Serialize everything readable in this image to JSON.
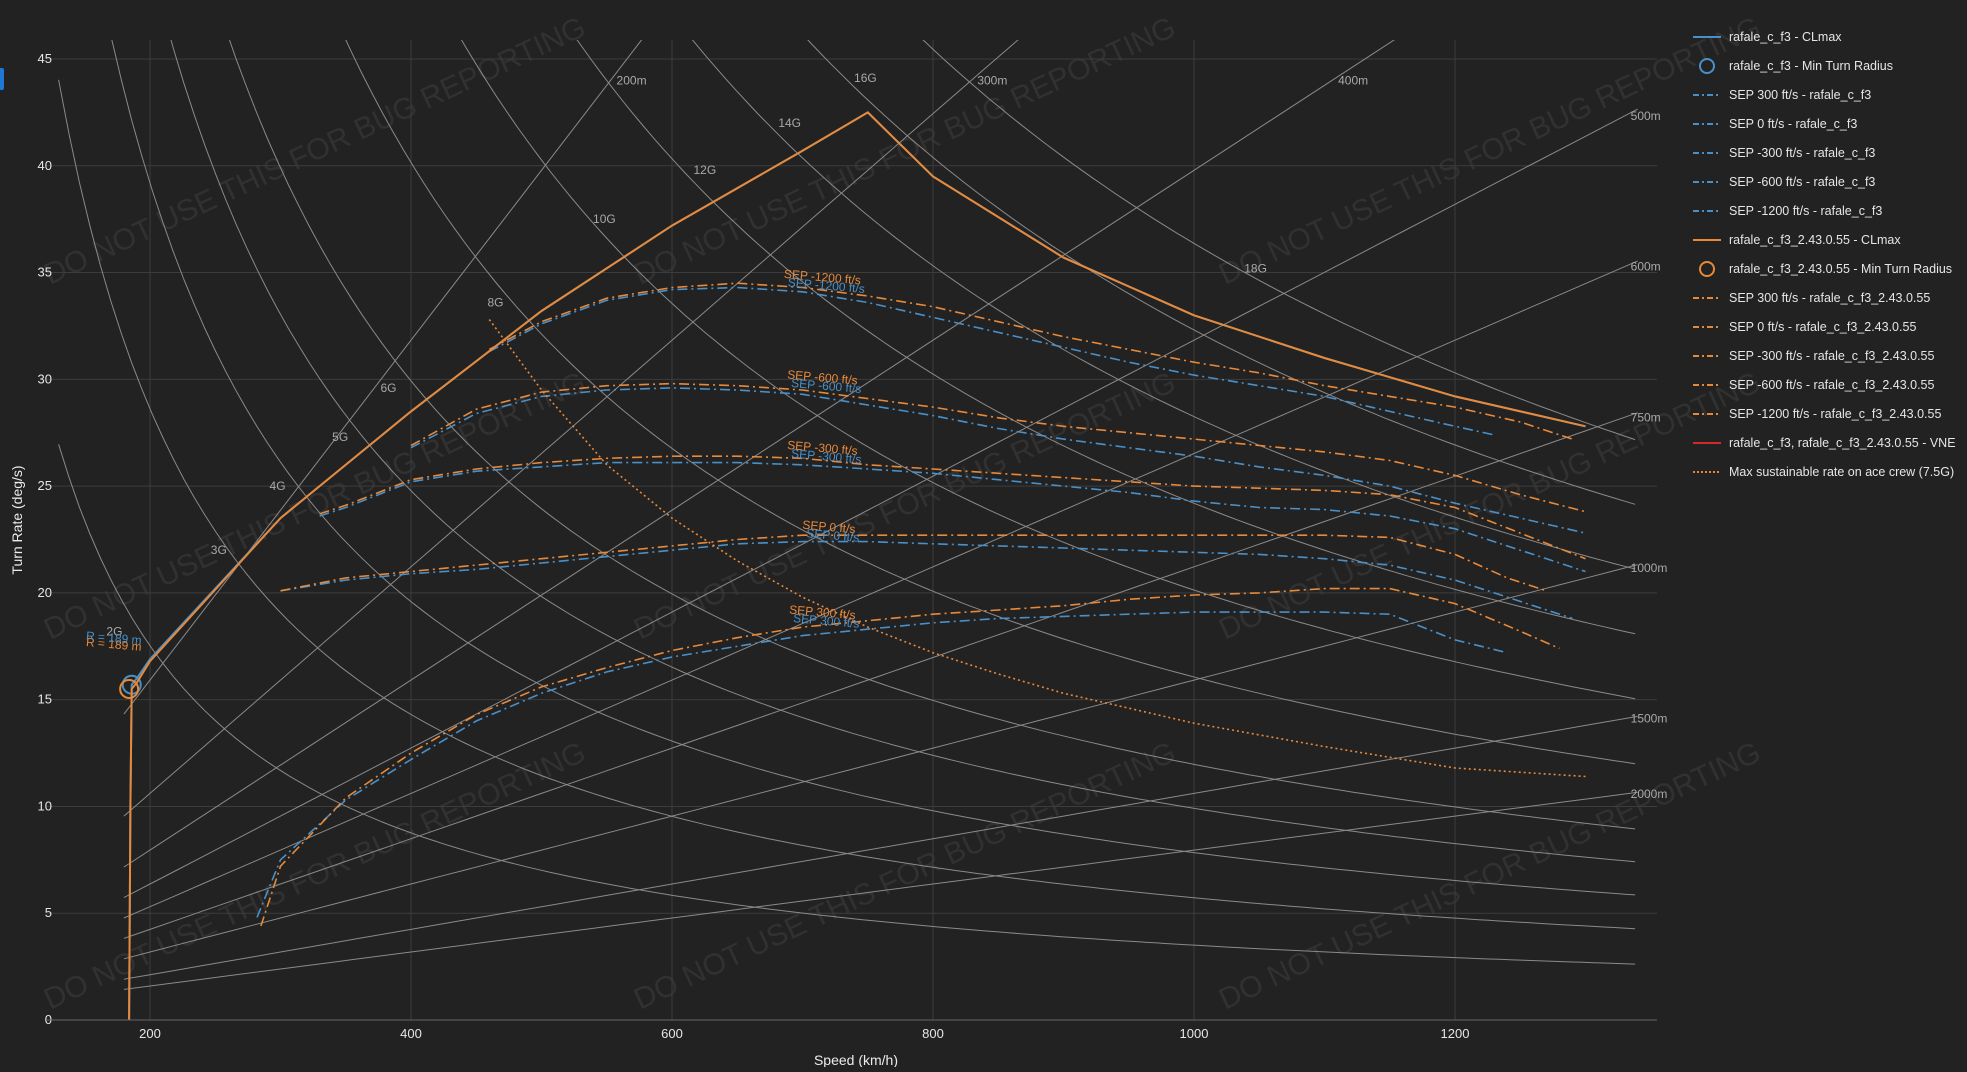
{
  "colors": {
    "background": "#222222",
    "grid": "#3c3c3c",
    "reference": "#8a8a8a",
    "blue": "#4a90c8",
    "orange": "#e8893a",
    "red": "#d62728",
    "mixed_dash": "#d9c8b8"
  },
  "watermark_text": "DO NOT USE THIS FOR BUG REPORTING",
  "chart_data": {
    "type": "line",
    "xlabel": "Speed (km/h)",
    "ylabel": "Turn Rate (deg/s)",
    "xlim": [
      135,
      1340
    ],
    "ylim": [
      0,
      46
    ],
    "xticks": [
      200,
      400,
      600,
      800,
      1000,
      1200
    ],
    "yticks": [
      0,
      5,
      10,
      15,
      20,
      25,
      30,
      35,
      40,
      45
    ],
    "grid": true,
    "legend_position": "right",
    "g_lines": [
      {
        "label": "2G",
        "g": 2,
        "label_at": [
          185,
          18.2
        ]
      },
      {
        "label": "3G",
        "g": 3,
        "label_at": [
          265,
          22.0
        ]
      },
      {
        "label": "4G",
        "g": 4,
        "label_at": [
          310,
          25.0
        ]
      },
      {
        "label": "5G",
        "g": 5,
        "label_at": [
          358,
          27.3
        ]
      },
      {
        "label": "6G",
        "g": 6,
        "label_at": [
          395,
          29.6
        ]
      },
      {
        "label": "8G",
        "g": 8,
        "label_at": [
          477,
          33.6
        ]
      },
      {
        "label": "10G",
        "g": 10,
        "label_at": [
          563,
          37.5
        ]
      },
      {
        "label": "12G",
        "g": 12,
        "label_at": [
          640,
          39.8
        ]
      },
      {
        "label": "14G",
        "g": 14,
        "label_at": [
          705,
          42.0
        ]
      },
      {
        "label": "16G",
        "g": 16,
        "label_at": [
          763,
          44.1
        ]
      },
      {
        "label": "18G",
        "g": 18,
        "label_at": [
          1062,
          35.2
        ]
      }
    ],
    "radius_lines": [
      {
        "label": "200m",
        "r": 200
      },
      {
        "label": "300m",
        "r": 300
      },
      {
        "label": "400m",
        "r": 400
      },
      {
        "label": "500m",
        "r": 500
      },
      {
        "label": "600m",
        "r": 600
      },
      {
        "label": "750m",
        "r": 750
      },
      {
        "label": "1000m",
        "r": 1000
      },
      {
        "label": "1500m",
        "r": 1500
      },
      {
        "label": "2000m",
        "r": 2000
      }
    ],
    "series": [
      {
        "name": "rafale_c_f3 - CLmax",
        "color": "#4a90c8",
        "style": "solid",
        "x": [
          184,
          185,
          186,
          190,
          200,
          300,
          400,
          500,
          600,
          700,
          750,
          800,
          900,
          1000,
          1100,
          1200,
          1300
        ],
        "y": [
          0,
          10,
          15.7,
          16.0,
          16.9,
          23.5,
          28.5,
          33.2,
          37.2,
          40.7,
          42.5,
          39.5,
          35.7,
          33.0,
          31.0,
          29.2,
          27.8
        ]
      },
      {
        "name": "rafale_c_f3 - Min Turn Radius",
        "color": "#4a90c8",
        "marker": "circle",
        "x": [
          186
        ],
        "y": [
          15.7
        ],
        "annotation": "R = 189 m"
      },
      {
        "name": "SEP 300 ft/s - rafale_c_f3",
        "color": "#4a90c8",
        "style": "dashdot",
        "x": [
          282,
          300,
          350,
          400,
          450,
          500,
          550,
          600,
          650,
          700,
          750,
          800,
          850,
          900,
          950,
          1000,
          1050,
          1100,
          1150,
          1200,
          1240
        ],
        "y": [
          4.8,
          7.5,
          10.3,
          12.2,
          14.0,
          15.3,
          16.3,
          17.0,
          17.5,
          18.0,
          18.3,
          18.6,
          18.8,
          18.9,
          19.0,
          19.1,
          19.1,
          19.1,
          19.0,
          17.8,
          17.2
        ]
      },
      {
        "name": "SEP 0 ft/s - rafale_c_f3",
        "color": "#4a90c8",
        "style": "dashdot",
        "x": [
          300,
          350,
          400,
          450,
          500,
          550,
          600,
          650,
          700,
          750,
          800,
          850,
          900,
          950,
          1000,
          1050,
          1100,
          1150,
          1200,
          1250,
          1290
        ],
        "y": [
          20.1,
          20.6,
          20.9,
          21.1,
          21.4,
          21.7,
          22.0,
          22.3,
          22.4,
          22.4,
          22.3,
          22.2,
          22.1,
          22.0,
          21.9,
          21.8,
          21.6,
          21.3,
          20.6,
          19.6,
          18.8
        ]
      },
      {
        "name": "SEP -300 ft/s - rafale_c_f3",
        "color": "#4a90c8",
        "style": "dashdot",
        "x": [
          330,
          350,
          400,
          450,
          500,
          550,
          600,
          650,
          700,
          750,
          800,
          850,
          900,
          950,
          1000,
          1050,
          1100,
          1150,
          1200,
          1250,
          1300
        ],
        "y": [
          23.6,
          24.0,
          25.2,
          25.7,
          25.9,
          26.1,
          26.1,
          26.1,
          26.0,
          25.8,
          25.6,
          25.3,
          25.0,
          24.7,
          24.3,
          24.0,
          23.9,
          23.6,
          23.0,
          22.0,
          21.0
        ]
      },
      {
        "name": "SEP -600 ft/s - rafale_c_f3",
        "color": "#4a90c8",
        "style": "dashdot",
        "x": [
          400,
          450,
          500,
          550,
          600,
          650,
          700,
          750,
          800,
          850,
          900,
          950,
          1000,
          1050,
          1100,
          1150,
          1200,
          1250,
          1300
        ],
        "y": [
          26.8,
          28.4,
          29.2,
          29.5,
          29.6,
          29.5,
          29.3,
          28.8,
          28.3,
          27.7,
          27.2,
          26.8,
          26.4,
          25.9,
          25.5,
          25.0,
          24.2,
          23.5,
          22.8
        ]
      },
      {
        "name": "SEP -1200 ft/s - rafale_c_f3",
        "color": "#4a90c8",
        "style": "dashdot",
        "x": [
          460,
          500,
          550,
          600,
          650,
          700,
          750,
          800,
          850,
          900,
          950,
          1000,
          1050,
          1100,
          1150,
          1200,
          1230
        ],
        "y": [
          31.3,
          32.6,
          33.7,
          34.2,
          34.3,
          34.1,
          33.6,
          32.9,
          32.2,
          31.5,
          30.8,
          30.2,
          29.7,
          29.2,
          28.5,
          27.8,
          27.4
        ]
      },
      {
        "name": "rafale_c_f3_2.43.0.55 - CLmax",
        "color": "#e8893a",
        "style": "solid",
        "x": [
          184,
          185,
          186,
          190,
          200,
          300,
          400,
          500,
          600,
          700,
          750,
          800,
          900,
          1000,
          1100,
          1200,
          1300
        ],
        "y": [
          0,
          10,
          15.5,
          15.8,
          16.8,
          23.5,
          28.5,
          33.2,
          37.2,
          40.7,
          42.5,
          39.5,
          35.7,
          33.0,
          31.0,
          29.2,
          27.8
        ]
      },
      {
        "name": "rafale_c_f3_2.43.0.55 - Min Turn Radius",
        "color": "#e8893a",
        "marker": "circle",
        "x": [
          184
        ],
        "y": [
          15.5
        ],
        "annotation": "R = 189 m"
      },
      {
        "name": "SEP 300 ft/s - rafale_c_f3_2.43.0.55",
        "color": "#e8893a",
        "style": "dashdot",
        "x": [
          285,
          300,
          350,
          400,
          450,
          500,
          550,
          600,
          650,
          700,
          750,
          800,
          850,
          900,
          950,
          1000,
          1050,
          1100,
          1150,
          1200,
          1250,
          1280
        ],
        "y": [
          4.4,
          7.2,
          10.4,
          12.5,
          14.3,
          15.6,
          16.5,
          17.3,
          17.9,
          18.4,
          18.7,
          19.0,
          19.2,
          19.4,
          19.7,
          19.9,
          20.0,
          20.2,
          20.2,
          19.5,
          18.2,
          17.4
        ]
      },
      {
        "name": "SEP 0 ft/s - rafale_c_f3_2.43.0.55",
        "color": "#e8893a",
        "style": "dashdot",
        "x": [
          300,
          350,
          400,
          450,
          500,
          550,
          600,
          650,
          700,
          750,
          800,
          850,
          900,
          950,
          1000,
          1050,
          1100,
          1150,
          1200,
          1240,
          1270
        ],
        "y": [
          20.1,
          20.7,
          21.0,
          21.3,
          21.6,
          21.9,
          22.2,
          22.5,
          22.7,
          22.7,
          22.7,
          22.7,
          22.7,
          22.7,
          22.7,
          22.7,
          22.7,
          22.6,
          21.8,
          20.7,
          20.1
        ]
      },
      {
        "name": "SEP -300 ft/s - rafale_c_f3_2.43.0.55",
        "color": "#e8893a",
        "style": "dashdot",
        "x": [
          330,
          350,
          400,
          450,
          500,
          550,
          600,
          650,
          700,
          750,
          800,
          850,
          900,
          950,
          1000,
          1050,
          1100,
          1150,
          1200,
          1250,
          1300
        ],
        "y": [
          23.7,
          24.1,
          25.3,
          25.8,
          26.1,
          26.3,
          26.4,
          26.4,
          26.3,
          26.0,
          25.8,
          25.6,
          25.4,
          25.2,
          25.0,
          24.9,
          24.8,
          24.6,
          24.0,
          22.8,
          21.6
        ]
      },
      {
        "name": "SEP -600 ft/s - rafale_c_f3_2.43.0.55",
        "color": "#e8893a",
        "style": "dashdot",
        "x": [
          400,
          450,
          500,
          550,
          600,
          650,
          700,
          750,
          800,
          850,
          900,
          950,
          1000,
          1050,
          1100,
          1150,
          1200,
          1250,
          1300
        ],
        "y": [
          26.9,
          28.6,
          29.4,
          29.7,
          29.8,
          29.7,
          29.5,
          29.1,
          28.7,
          28.2,
          27.8,
          27.5,
          27.2,
          26.9,
          26.6,
          26.2,
          25.5,
          24.6,
          23.8
        ]
      },
      {
        "name": "SEP -1200 ft/s - rafale_c_f3_2.43.0.55",
        "color": "#e8893a",
        "style": "dashdot",
        "x": [
          460,
          500,
          550,
          600,
          650,
          700,
          750,
          800,
          850,
          900,
          950,
          1000,
          1050,
          1100,
          1150,
          1200,
          1250,
          1290
        ],
        "y": [
          31.4,
          32.7,
          33.8,
          34.3,
          34.5,
          34.3,
          33.9,
          33.4,
          32.7,
          32.0,
          31.4,
          30.8,
          30.3,
          29.7,
          29.2,
          28.7,
          28.0,
          27.2
        ]
      },
      {
        "name": "rafale_c_f3, rafale_c_f3_2.43.0.55 - VNE",
        "color": "#d62728",
        "style": "solid",
        "x": [],
        "y": []
      },
      {
        "name": "Max sustainable rate on ace crew (7.5G)",
        "color": "#e8893a",
        "style": "dotted",
        "x": [
          460,
          500,
          550,
          600,
          650,
          700,
          750,
          800,
          850,
          900,
          950,
          1000,
          1100,
          1200,
          1300
        ],
        "y": [
          32.8,
          29.5,
          26.0,
          23.5,
          21.5,
          19.8,
          18.4,
          17.2,
          16.2,
          15.3,
          14.6,
          13.9,
          12.8,
          11.8,
          11.4
        ]
      }
    ],
    "annotations": [
      {
        "text": "SEP -1200 ft/s",
        "x": 715,
        "y": 34.6,
        "color": "#e8893a"
      },
      {
        "text": "SEP -1200 ft/s",
        "x": 718,
        "y": 34.2,
        "color": "#4a90c8"
      },
      {
        "text": "SEP -600 ft/s",
        "x": 715,
        "y": 29.9,
        "color": "#e8893a"
      },
      {
        "text": "SEP -600 ft/s",
        "x": 718,
        "y": 29.5,
        "color": "#4a90c8"
      },
      {
        "text": "SEP -300 ft/s",
        "x": 715,
        "y": 26.6,
        "color": "#e8893a"
      },
      {
        "text": "SEP -300 ft/s",
        "x": 718,
        "y": 26.2,
        "color": "#4a90c8"
      },
      {
        "text": "SEP 0 ft/s",
        "x": 720,
        "y": 22.9,
        "color": "#e8893a"
      },
      {
        "text": "SEP 0 ft/s",
        "x": 723,
        "y": 22.5,
        "color": "#4a90c8"
      },
      {
        "text": "SEP 300 ft/s",
        "x": 715,
        "y": 18.9,
        "color": "#e8893a"
      },
      {
        "text": "SEP 300 ft/s",
        "x": 718,
        "y": 18.5,
        "color": "#4a90c8"
      },
      {
        "text": "R = 189 m",
        "x": 172,
        "y": 17.4,
        "color": "#e8893a"
      },
      {
        "text": "R = 189 m",
        "x": 172,
        "y": 17.7,
        "color": "#4a90c8"
      }
    ]
  }
}
